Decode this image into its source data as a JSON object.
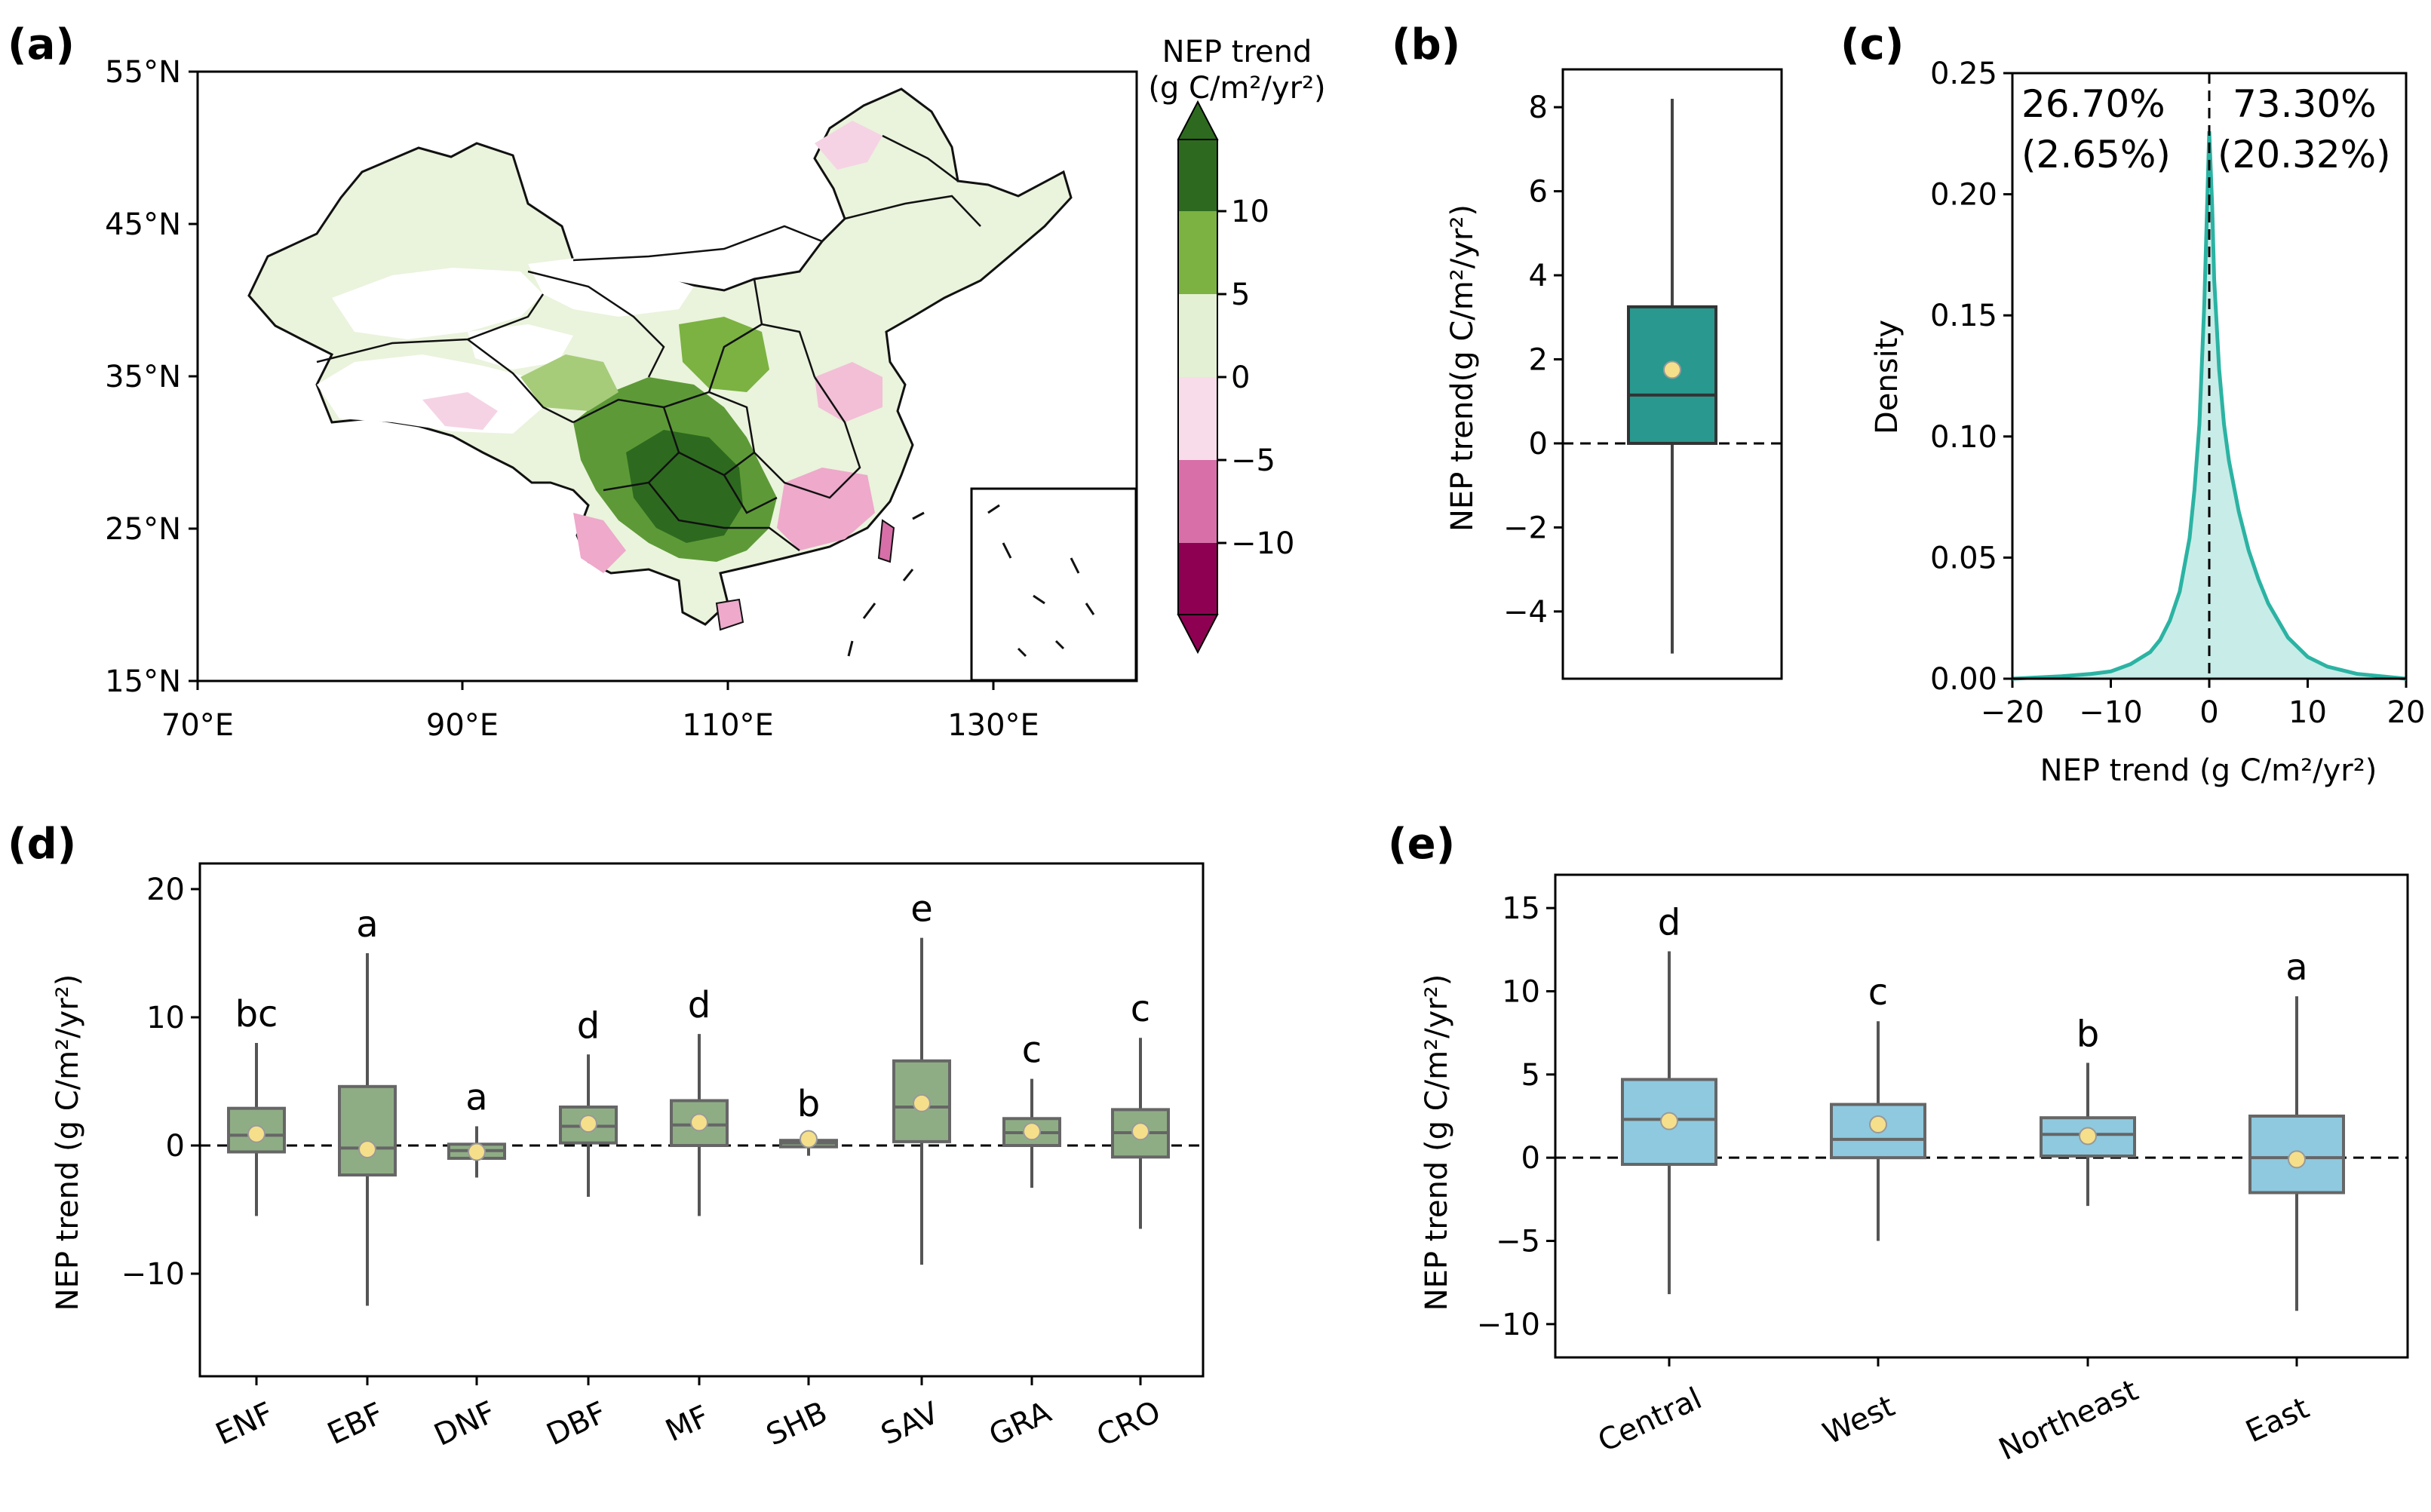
{
  "colors": {
    "forest": "#2d6a1f",
    "green_mid": "#7bb241",
    "green_light": "#e4f0d3",
    "pink_light": "#f9dce9",
    "pink_mid": "#d86fa9",
    "magenta": "#8e0152",
    "teal": "#29998f",
    "teal_line": "#2bb3a3",
    "olive_box": "#8fad85",
    "blue_box": "#8ec9df",
    "mean_marker": "#f5df8a",
    "whisker": "#555555"
  },
  "panel_a": {
    "label": "(a)",
    "lat_labels": [
      "55°N",
      "45°N",
      "35°N",
      "25°N",
      "15°N"
    ],
    "lon_labels": [
      "70°E",
      "90°E",
      "110°E",
      "130°E"
    ],
    "colorbar": {
      "title_line1": "NEP trend",
      "title_line2": "(g C/m²/yr²)",
      "tick_labels": [
        "10",
        "5",
        "0",
        "−5",
        "−10"
      ]
    }
  },
  "chart_data": [
    {
      "id": "b",
      "label": "(b)",
      "type": "box",
      "ylabel": "NEP trend(g C/m²/yr²)",
      "ylim": [
        -5.6,
        8.9
      ],
      "yticks": [
        8,
        6,
        4,
        2,
        0,
        -2,
        -4
      ],
      "ytick_labels": [
        "8",
        "6",
        "4",
        "2",
        "0",
        "−2",
        "−4"
      ],
      "boxes": [
        {
          "q1": 0.0,
          "median": 1.15,
          "q3": 3.25,
          "whislo": -5.0,
          "whishi": 8.2,
          "mean": 1.75
        }
      ],
      "reference_line": 0
    },
    {
      "id": "c",
      "label": "(c)",
      "type": "area",
      "xlabel": "NEP trend (g C/m²/yr²)",
      "ylabel": "Density",
      "xlim": [
        -20,
        20
      ],
      "ylim": [
        0,
        0.25
      ],
      "xticks": [
        -20,
        -10,
        0,
        10,
        20
      ],
      "xtick_labels": [
        "−20",
        "−10",
        "0",
        "10",
        "20"
      ],
      "yticks": [
        0.0,
        0.05,
        0.1,
        0.15,
        0.2,
        0.25
      ],
      "ytick_labels": [
        "0.00",
        "0.05",
        "0.10",
        "0.15",
        "0.20",
        "0.25"
      ],
      "x": [
        -20,
        -15,
        -12,
        -10,
        -8,
        -6,
        -5,
        -4,
        -3,
        -2,
        -1.5,
        -1,
        -0.5,
        0,
        0.3,
        0.5,
        1,
        1.5,
        2,
        3,
        4,
        5,
        6,
        8,
        10,
        12,
        15,
        20
      ],
      "density": [
        0.0,
        0.001,
        0.002,
        0.003,
        0.006,
        0.011,
        0.016,
        0.024,
        0.036,
        0.058,
        0.078,
        0.105,
        0.155,
        0.226,
        0.195,
        0.165,
        0.128,
        0.105,
        0.09,
        0.069,
        0.053,
        0.041,
        0.031,
        0.017,
        0.009,
        0.005,
        0.002,
        0.0
      ],
      "annotations": {
        "neg_pct": "26.70%",
        "neg_sig": "(2.65%)",
        "pos_pct": "73.30%",
        "pos_sig": "(20.32%)"
      },
      "reference_line": 0
    },
    {
      "id": "d",
      "label": "(d)",
      "type": "box",
      "ylabel": "NEP trend (g C/m²/yr²)",
      "ylim": [
        -18,
        22
      ],
      "yticks": [
        20,
        10,
        0,
        -10
      ],
      "ytick_labels": [
        "20",
        "10",
        "0",
        "−10"
      ],
      "categories": [
        "ENF",
        "EBF",
        "DNF",
        "DBF",
        "MF",
        "SHB",
        "SAV",
        "GRA",
        "CRO"
      ],
      "letters": [
        "bc",
        "a",
        "a",
        "d",
        "d",
        "b",
        "e",
        "c",
        "c"
      ],
      "boxes": [
        {
          "q1": -0.5,
          "median": 0.8,
          "q3": 2.9,
          "whislo": -5.5,
          "whishi": 8.0,
          "mean": 0.9
        },
        {
          "q1": -2.3,
          "median": -0.2,
          "q3": 4.6,
          "whislo": -12.5,
          "whishi": 15.0,
          "mean": -0.3
        },
        {
          "q1": -1.0,
          "median": -0.4,
          "q3": 0.1,
          "whislo": -2.5,
          "whishi": 1.5,
          "mean": -0.5
        },
        {
          "q1": 0.2,
          "median": 1.5,
          "q3": 3.0,
          "whislo": -4.0,
          "whishi": 7.1,
          "mean": 1.7
        },
        {
          "q1": 0.0,
          "median": 1.6,
          "q3": 3.5,
          "whislo": -5.5,
          "whishi": 8.7,
          "mean": 1.8
        },
        {
          "q1": -0.1,
          "median": 0.2,
          "q3": 0.4,
          "whislo": -0.8,
          "whishi": 1.0,
          "mean": 0.5
        },
        {
          "q1": 0.3,
          "median": 3.0,
          "q3": 6.6,
          "whislo": -9.3,
          "whishi": 16.2,
          "mean": 3.3
        },
        {
          "q1": 0.0,
          "median": 1.0,
          "q3": 2.1,
          "whislo": -3.3,
          "whishi": 5.2,
          "mean": 1.1
        },
        {
          "q1": -0.9,
          "median": 1.0,
          "q3": 2.8,
          "whislo": -6.5,
          "whishi": 8.4,
          "mean": 1.1
        }
      ],
      "reference_line": 0
    },
    {
      "id": "e",
      "label": "(e)",
      "type": "box",
      "ylabel": "NEP trend (g C/m²/yr²)",
      "ylim": [
        -12,
        17
      ],
      "yticks": [
        15,
        10,
        5,
        0,
        -5,
        -10
      ],
      "ytick_labels": [
        "15",
        "10",
        "5",
        "0",
        "−5",
        "−10"
      ],
      "categories": [
        "Central",
        "West",
        "Northeast",
        "East"
      ],
      "letters": [
        "d",
        "c",
        "b",
        "a"
      ],
      "boxes": [
        {
          "q1": -0.4,
          "median": 2.3,
          "q3": 4.7,
          "whislo": -8.2,
          "whishi": 12.4,
          "mean": 2.2
        },
        {
          "q1": 0.0,
          "median": 1.1,
          "q3": 3.2,
          "whislo": -5.0,
          "whishi": 8.2,
          "mean": 2.0
        },
        {
          "q1": 0.1,
          "median": 1.4,
          "q3": 2.4,
          "whislo": -2.9,
          "whishi": 5.7,
          "mean": 1.3
        },
        {
          "q1": -2.1,
          "median": 0.0,
          "q3": 2.5,
          "whislo": -9.2,
          "whishi": 9.7,
          "mean": -0.1
        }
      ],
      "reference_line": 0
    }
  ]
}
